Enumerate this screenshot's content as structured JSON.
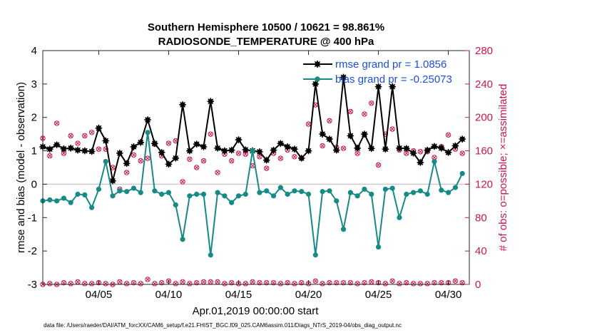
{
  "chart_data": {
    "type": "line",
    "title": "Southern Hemisphere 10500 / 10621 = 98.861%",
    "subtitle": "RADIOSONDE_TEMPERATURE @ 400 hPa",
    "xlabel": "Apr.01,2019 00:00:00 start",
    "ylabel": "rmse and bias (model - observation)",
    "y2label": "# of obs: o=possible; ×=assimilated",
    "xlim": [
      1,
      31.5
    ],
    "ylim": [
      -3,
      4
    ],
    "y2lim": [
      0,
      280
    ],
    "x_ticks": [
      5,
      10,
      15,
      20,
      25,
      30
    ],
    "x_tick_labels": [
      "04/05",
      "04/10",
      "04/15",
      "04/20",
      "04/25",
      "04/30"
    ],
    "y_ticks": [
      -3,
      -2,
      -1,
      0,
      1,
      2,
      3,
      4
    ],
    "y_tick_labels": [
      "-3",
      "-2",
      "-1",
      "0",
      "1",
      "2",
      "3",
      "4"
    ],
    "y2_ticks": [
      0,
      40,
      80,
      120,
      160,
      200,
      240,
      280
    ],
    "y2_tick_labels": [
      "0",
      "40",
      "80",
      "120",
      "160",
      "200",
      "240",
      "280"
    ],
    "zero_line": 0,
    "x": [
      1.0,
      1.5,
      2.0,
      2.5,
      3.0,
      3.5,
      4.0,
      4.5,
      5.0,
      5.5,
      6.0,
      6.5,
      7.0,
      7.5,
      8.0,
      8.5,
      9.0,
      9.5,
      10.0,
      10.5,
      11.0,
      11.5,
      12.0,
      12.5,
      13.0,
      13.5,
      14.0,
      14.5,
      15.0,
      15.5,
      16.0,
      16.5,
      17.0,
      17.5,
      18.0,
      18.5,
      19.0,
      19.5,
      20.0,
      20.5,
      21.0,
      21.5,
      22.0,
      22.5,
      23.0,
      23.5,
      24.0,
      24.5,
      25.0,
      25.5,
      26.0,
      26.5,
      27.0,
      27.5,
      28.0,
      28.5,
      29.0,
      29.5,
      30.0,
      30.5,
      31.0
    ],
    "series": [
      {
        "name": "rmse",
        "legend": "rmse grand pr = 1.0856",
        "color": "#000000",
        "values": [
          1.12,
          1.05,
          1.18,
          1.06,
          1.08,
          1.02,
          1.0,
          0.98,
          1.68,
          1.3,
          0.1,
          0.93,
          0.62,
          1.12,
          1.25,
          1.93,
          1.22,
          0.95,
          0.6,
          0.78,
          2.38,
          1.0,
          1.2,
          1.12,
          2.48,
          1.08,
          1.0,
          1.02,
          1.33,
          1.03,
          1.0,
          0.97,
          0.72,
          1.02,
          1.22,
          1.12,
          1.05,
          0.78,
          1.0,
          3.0,
          1.5,
          1.35,
          1.02,
          3.2,
          1.45,
          1.08,
          1.5,
          1.07,
          2.92,
          1.05,
          2.92,
          1.08,
          1.07,
          0.93,
          0.65,
          1.02,
          1.13,
          1.08,
          0.95,
          1.15,
          1.35
        ]
      },
      {
        "name": "bias",
        "legend": "bias grand pr = -0.25073",
        "color": "#168a86",
        "values": [
          -0.5,
          -0.47,
          -0.5,
          -0.42,
          -0.55,
          -0.3,
          -0.32,
          -0.7,
          -0.15,
          0.68,
          -0.35,
          -0.2,
          -0.22,
          -0.12,
          -0.25,
          1.55,
          -0.2,
          -0.3,
          -0.25,
          -0.62,
          -1.65,
          -0.35,
          -0.3,
          -0.3,
          -2.12,
          -0.25,
          -0.35,
          -0.55,
          -0.35,
          -0.3,
          1.0,
          -0.25,
          -0.2,
          -0.35,
          -0.1,
          -0.3,
          -0.2,
          -0.22,
          -0.3,
          -2.12,
          -0.22,
          -0.2,
          -0.5,
          -1.35,
          -0.25,
          -0.35,
          -0.15,
          -0.3,
          -1.88,
          -0.15,
          -0.12,
          -1.0,
          -0.3,
          -0.25,
          -0.2,
          -0.3,
          0.68,
          -0.18,
          -0.25,
          -0.1,
          0.32
        ]
      }
    ],
    "obs_possible": [
      175,
      154,
      193,
      157,
      178,
      169,
      178,
      182,
      162,
      162,
      140,
      114,
      134,
      155,
      148,
      151,
      168,
      154,
      169,
      172,
      123,
      150,
      140,
      148,
      180,
      134,
      156,
      148,
      157,
      156,
      142,
      153,
      139,
      157,
      151,
      161,
      153,
      151,
      192,
      215,
      166,
      196,
      164,
      163,
      207,
      157,
      204,
      217,
      143,
      180,
      186,
      161,
      157,
      160,
      159,
      159,
      152,
      165,
      179,
      162,
      157
    ],
    "obs_assimilated": [
      175,
      154,
      193,
      157,
      178,
      169,
      178,
      182,
      162,
      162,
      140,
      114,
      134,
      155,
      148,
      151,
      168,
      154,
      169,
      172,
      123,
      150,
      140,
      148,
      180,
      134,
      156,
      148,
      157,
      156,
      142,
      153,
      139,
      157,
      151,
      161,
      153,
      151,
      192,
      215,
      166,
      196,
      164,
      163,
      207,
      157,
      204,
      217,
      143,
      180,
      186,
      161,
      157,
      160,
      159,
      159,
      152,
      165,
      179,
      162,
      157
    ],
    "obs_low_possible": [
      0,
      1,
      0,
      2,
      1,
      3,
      1,
      1,
      2,
      1,
      0,
      3,
      1,
      2,
      1,
      6,
      1,
      2,
      4,
      1,
      3,
      1,
      2,
      3,
      3,
      3,
      1,
      2,
      1,
      1,
      3,
      2,
      2,
      2,
      1,
      2,
      1,
      2,
      1,
      4,
      1,
      2,
      2,
      2,
      2,
      1,
      2,
      3,
      2,
      1,
      4,
      1,
      2,
      1,
      1,
      1,
      2,
      2,
      2,
      4,
      2
    ],
    "obs_color": "#c8174d",
    "footnote": "data file: /Users/raeder/DAI/ATM_forcXX/CAM6_setup/f.e21.FHIST_BGC.f09_025.CAM6assim.011/Diags_NTrS_2019-04/obs_diag_output.nc"
  }
}
